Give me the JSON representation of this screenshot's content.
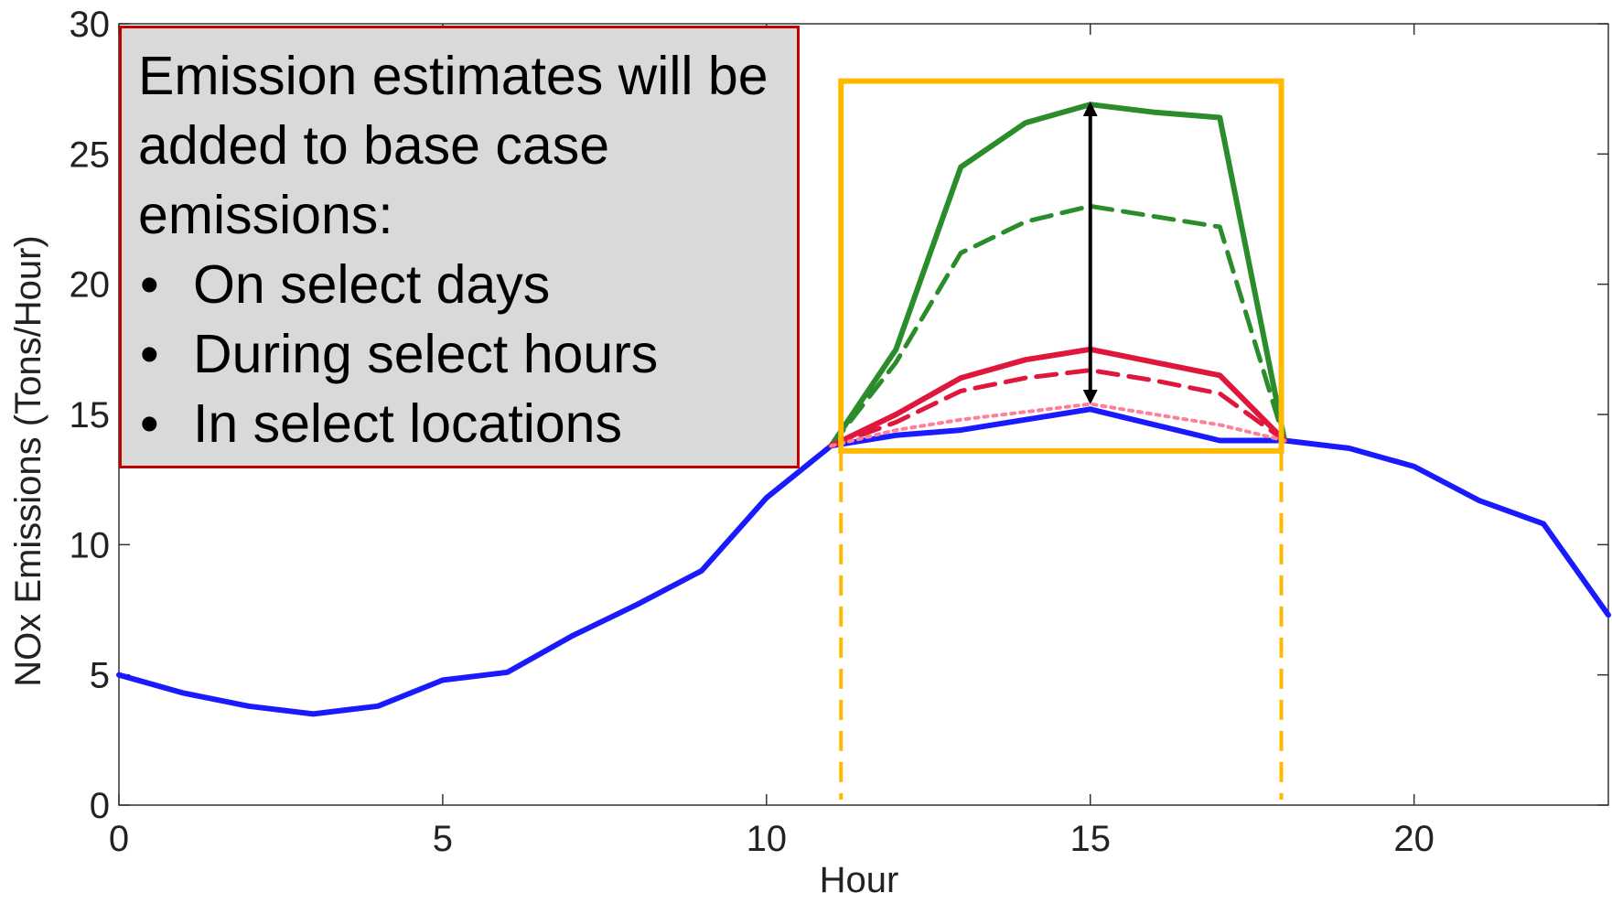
{
  "note": {
    "lead": "Emission estimates will be added to base case emissions:",
    "bullets": [
      "On select days",
      "During select hours",
      "In select locations"
    ],
    "bullet_glyph": "•",
    "border_color": "#c00000",
    "background_color": "#d9d9d9"
  },
  "chart_data": {
    "type": "line",
    "xlabel": "Hour",
    "ylabel": "NOx Emissions (Tons/Hour)",
    "xlim": [
      0,
      23
    ],
    "ylim": [
      0,
      30
    ],
    "x_ticks": [
      0,
      5,
      10,
      15,
      20
    ],
    "y_ticks": [
      0,
      5,
      10,
      15,
      20,
      25,
      30
    ],
    "grid": false,
    "series": [
      {
        "color": "#1a1aff",
        "style": "solid",
        "x": [
          0,
          1,
          2,
          3,
          4,
          5,
          6,
          7,
          8,
          9,
          10,
          11,
          12,
          13,
          14,
          15,
          16,
          17,
          18,
          19,
          20,
          21,
          22,
          23
        ],
        "y": [
          5.0,
          4.3,
          3.8,
          3.5,
          3.8,
          4.8,
          5.1,
          6.5,
          7.7,
          9.0,
          11.8,
          13.8,
          14.2,
          14.4,
          14.8,
          15.2,
          14.6,
          14.0,
          14.0,
          13.7,
          13.0,
          11.7,
          10.8,
          7.3
        ]
      },
      {
        "color": "#2a8c2a",
        "style": "solid",
        "x": [
          11,
          12,
          13,
          14,
          15,
          16,
          17,
          18
        ],
        "y": [
          13.8,
          17.5,
          24.5,
          26.2,
          26.9,
          26.6,
          26.4,
          14.0
        ]
      },
      {
        "color": "#2a8c2a",
        "style": "dashed",
        "x": [
          11,
          12,
          13,
          14,
          15,
          16,
          17,
          18
        ],
        "y": [
          13.8,
          17.0,
          21.2,
          22.4,
          23.0,
          22.6,
          22.2,
          14.0
        ]
      },
      {
        "color": "#e0173d",
        "style": "solid",
        "x": [
          11,
          12,
          13,
          14,
          15,
          16,
          17,
          18
        ],
        "y": [
          13.8,
          15.0,
          16.4,
          17.1,
          17.5,
          17.0,
          16.5,
          14.0
        ]
      },
      {
        "color": "#e0173d",
        "style": "dashed",
        "x": [
          11,
          12,
          13,
          14,
          15,
          16,
          17,
          18
        ],
        "y": [
          13.8,
          14.7,
          15.9,
          16.4,
          16.7,
          16.3,
          15.8,
          14.0
        ]
      },
      {
        "color": "#ff7f9a",
        "style": "dotted",
        "x": [
          11,
          12,
          13,
          14,
          15,
          16,
          17,
          18
        ],
        "y": [
          13.8,
          14.4,
          14.8,
          15.1,
          15.4,
          15.0,
          14.6,
          14.0
        ]
      }
    ],
    "annotations": {
      "highlight_box": {
        "x": [
          11.15,
          17.95
        ],
        "y": [
          13.6,
          27.8
        ],
        "color": "#ffba00"
      },
      "guide_lines": {
        "x": [
          11.15,
          17.95
        ],
        "color": "#ffba00",
        "style": "dashed"
      },
      "range_arrow": {
        "x": 15,
        "y": [
          15.5,
          26.9
        ],
        "color": "#000000"
      }
    }
  }
}
